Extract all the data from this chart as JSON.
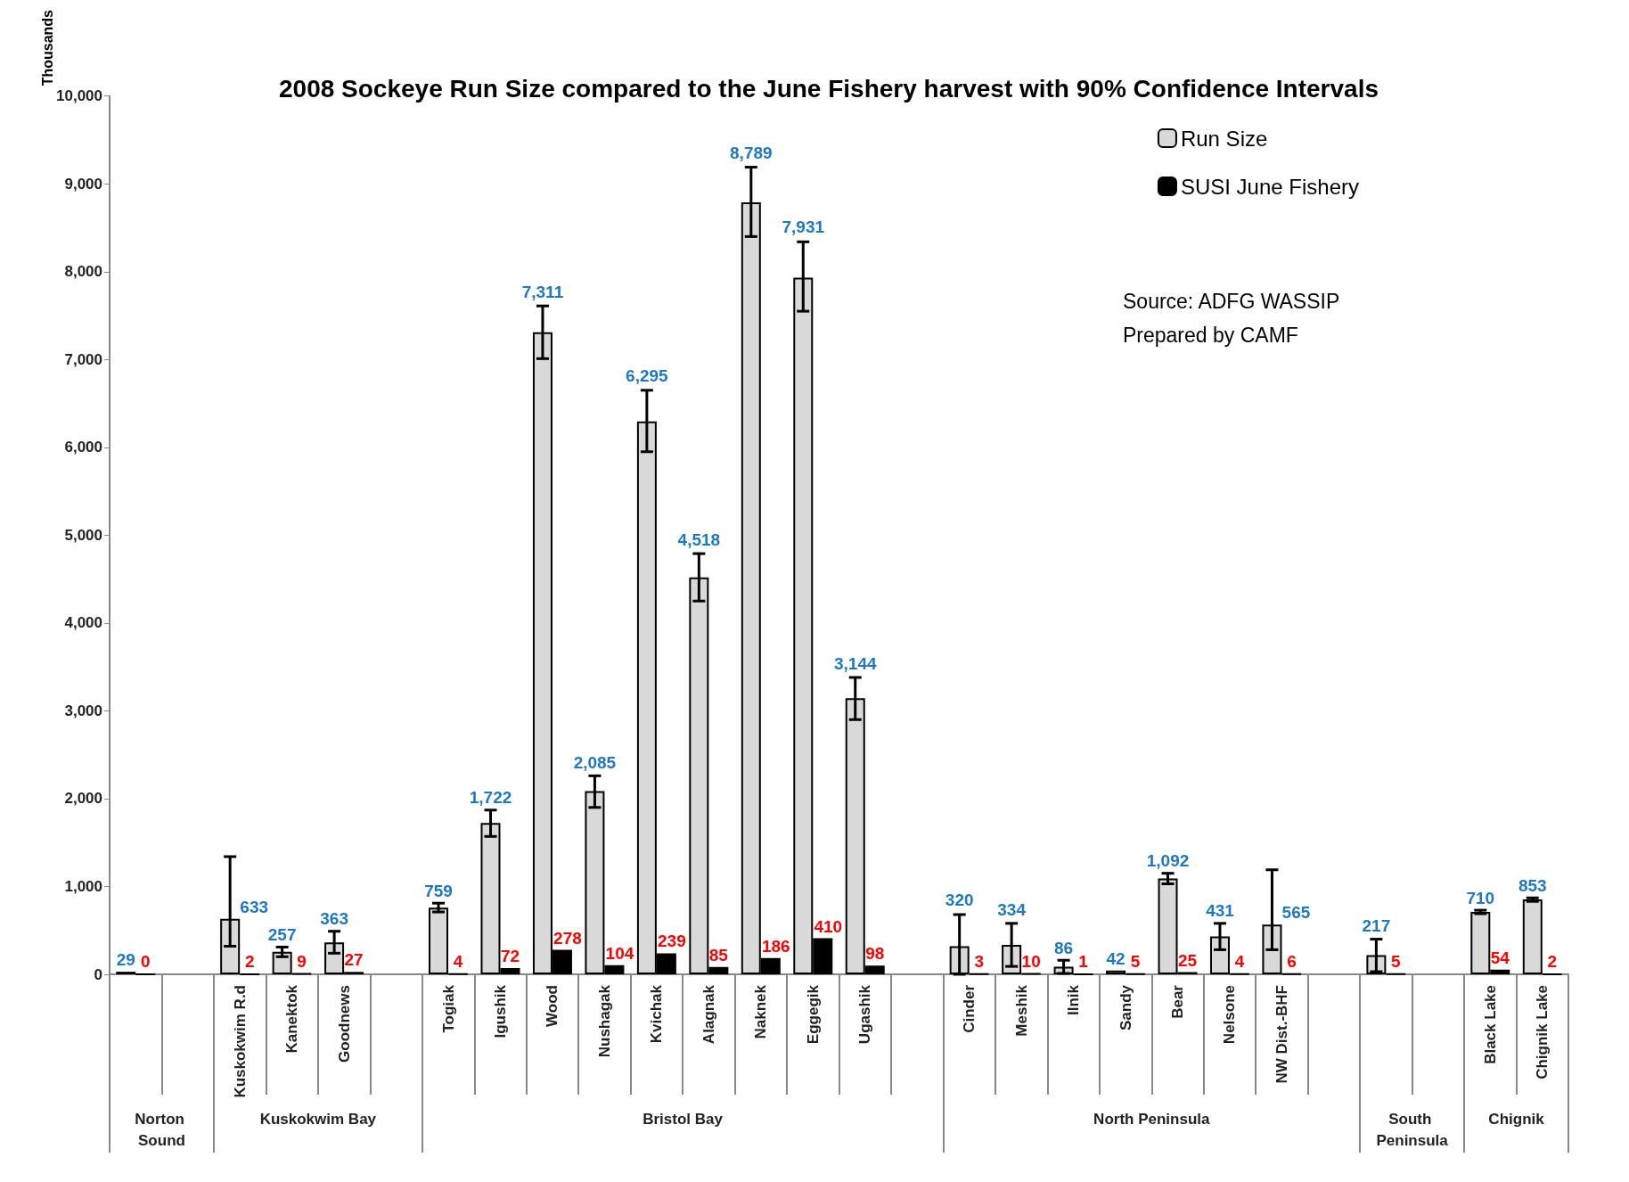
{
  "chart_data": {
    "type": "bar",
    "title": "2008 Sockeye Run Size compared to the June Fishery harvest with 90% Confidence Intervals",
    "ylabel": "Thousands",
    "categories": [
      null,
      null,
      "Kuskokwim R.d",
      "Kanektok",
      "Goodnews",
      null,
      "Togiak",
      "Igushik",
      "Wood",
      "Nushagak",
      "Kvichak",
      "Alagnak",
      "Naknek",
      "Eggegik",
      "Ugashik",
      null,
      "Cinder",
      "Meshik",
      "Ilnik",
      "Sandy",
      "Bear",
      "Nelsone",
      "NW Dist.-BHF",
      null,
      null,
      null,
      "Black Lake",
      "Chignik Lake"
    ],
    "series": [
      {
        "name": "Run Size",
        "color": "#d9d9d9",
        "values": [
          29,
          null,
          633,
          257,
          363,
          null,
          759,
          1722,
          7311,
          2085,
          6295,
          4518,
          8789,
          7931,
          3144,
          null,
          320,
          334,
          86,
          42,
          1092,
          431,
          565,
          null,
          217,
          null,
          710,
          853
        ],
        "errors": [
          null,
          null,
          [
            320,
            1340
          ],
          [
            200,
            310
          ],
          [
            240,
            490
          ],
          null,
          [
            710,
            810
          ],
          [
            1570,
            1870
          ],
          [
            7010,
            7610
          ],
          [
            1900,
            2260
          ],
          [
            5950,
            6650
          ],
          [
            4250,
            4790
          ],
          [
            8400,
            9190
          ],
          [
            7550,
            8340
          ],
          [
            2900,
            3380
          ],
          null,
          [
            0,
            680
          ],
          [
            90,
            580
          ],
          [
            10,
            160
          ],
          null,
          [
            1030,
            1150
          ],
          [
            280,
            580
          ],
          [
            280,
            1190
          ],
          null,
          [
            30,
            400
          ],
          null,
          [
            690,
            730
          ],
          [
            830,
            870
          ]
        ],
        "value_labels": [
          "29",
          null,
          "633",
          "257",
          "363",
          null,
          "759",
          "1,722",
          "7,311",
          "2,085",
          "6,295",
          "4,518",
          "8,789",
          "7,931",
          "3,144",
          null,
          "320",
          "334",
          "86",
          "42",
          "1,092",
          "431",
          "565",
          null,
          "217",
          null,
          "710",
          "853"
        ]
      },
      {
        "name": "SUSI June Fishery",
        "color": "#000000",
        "values": [
          0,
          null,
          2,
          9,
          27,
          null,
          4,
          72,
          278,
          104,
          239,
          85,
          186,
          410,
          98,
          null,
          3,
          10,
          1,
          5,
          25,
          4,
          6,
          null,
          5,
          null,
          54,
          2
        ],
        "value_labels": [
          "0",
          null,
          "2",
          "9",
          "27",
          null,
          "4",
          "72",
          "278",
          "104",
          "239",
          "85",
          "186",
          "410",
          "98",
          null,
          "3",
          "10",
          "1",
          "5",
          "25",
          "4",
          "6",
          null,
          "5",
          null,
          "54",
          "2"
        ]
      }
    ],
    "ylim": [
      0,
      10000
    ],
    "yticks": [
      0,
      {
        "value": 1000,
        "label": "1,000"
      },
      {
        "value": 2000,
        "label": "2,000"
      },
      {
        "value": 3000,
        "label": "3,000"
      },
      {
        "value": 4000,
        "label": "4,000"
      },
      {
        "value": 5000,
        "label": "5,000"
      },
      {
        "value": 6000,
        "label": "6,000"
      },
      {
        "value": 7000,
        "label": "7,000"
      },
      {
        "value": 8000,
        "label": "8,000"
      },
      {
        "value": 9000,
        "label": "9,000"
      },
      {
        "value": 10000,
        "label": "10,000"
      }
    ],
    "grid": false,
    "legend": "top right",
    "annotations": [
      "Source: ADFG WASSIP",
      "Prepared by CAMF",
      "Norton Sound",
      "Kuskokwim Bay",
      "Bristol Bay",
      "North Peninsula",
      "South Peninsula",
      "Chignik"
    ]
  }
}
